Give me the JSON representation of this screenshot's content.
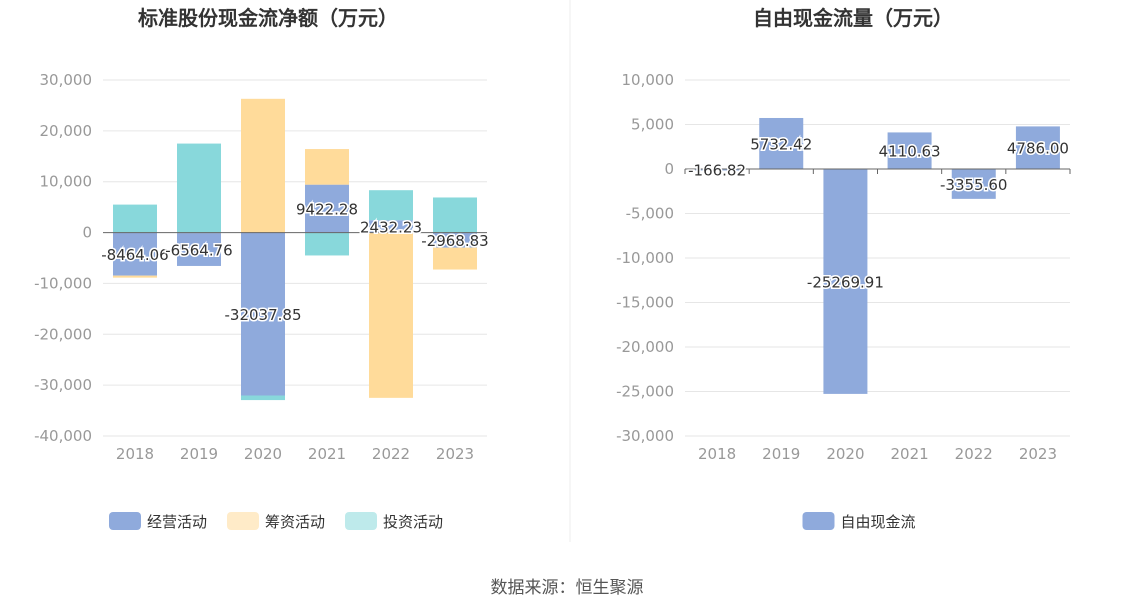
{
  "colors": {
    "operating": "#8faadc",
    "financing": "#ffdb9a",
    "investing": "#88d8db",
    "free_cash_flow": "#8faadc",
    "grid": "#e6e6e6",
    "axis_text": "#999999",
    "title_text": "#333333",
    "label_text": "#333333",
    "legend_text": "#333333",
    "divider": "#eeeeee"
  },
  "source_text": "数据来源：恒生聚源",
  "chart_data": [
    {
      "type": "bar",
      "stacked": true,
      "title": "标准股份现金流净额（万元）",
      "categories": [
        "2018",
        "2019",
        "2020",
        "2021",
        "2022",
        "2023"
      ],
      "ylim": [
        -40000,
        30000
      ],
      "yticks": [
        30000,
        20000,
        10000,
        0,
        -10000,
        -20000,
        -30000,
        -40000
      ],
      "ytick_labels": [
        "30,000",
        "20,000",
        "10,000",
        "0",
        "-10,000",
        "-20,000",
        "-30,000",
        "-40,000"
      ],
      "grid": true,
      "legend_position": "bottom",
      "series": [
        {
          "name": "经营活动",
          "color_key": "operating",
          "values": [
            -8464.06,
            -6564.76,
            -32037.85,
            9422.28,
            2432.23,
            -2968.83
          ],
          "data_labels": [
            "-8464.06",
            "-6564.76",
            "-32037.85",
            "9422.28",
            "2432.23",
            "-2968.83"
          ]
        },
        {
          "name": "筹资活动",
          "color_key": "financing",
          "values": [
            -400,
            0,
            26300,
            7000,
            -32500,
            -4300
          ]
        },
        {
          "name": "投资活动",
          "color_key": "investing",
          "values": [
            5500,
            17500,
            -900,
            -4500,
            5900,
            6900
          ]
        }
      ]
    },
    {
      "type": "bar",
      "title": "自由现金流量（万元）",
      "categories": [
        "2018",
        "2019",
        "2020",
        "2021",
        "2022",
        "2023"
      ],
      "ylim": [
        -30000,
        10000
      ],
      "yticks": [
        10000,
        5000,
        0,
        -5000,
        -10000,
        -15000,
        -20000,
        -25000,
        -30000
      ],
      "ytick_labels": [
        "10,000",
        "5,000",
        "0",
        "-5,000",
        "-10,000",
        "-15,000",
        "-20,000",
        "-25,000",
        "-30,000"
      ],
      "grid": true,
      "legend_position": "bottom",
      "series": [
        {
          "name": "自由现金流",
          "color_key": "free_cash_flow",
          "values": [
            -166.82,
            5732.42,
            -25269.91,
            4110.63,
            -3355.6,
            4786.0
          ],
          "data_labels": [
            "-166.82",
            "5732.42",
            "-25269.91",
            "4110.63",
            "-3355.60",
            "4786.00"
          ]
        }
      ]
    }
  ]
}
